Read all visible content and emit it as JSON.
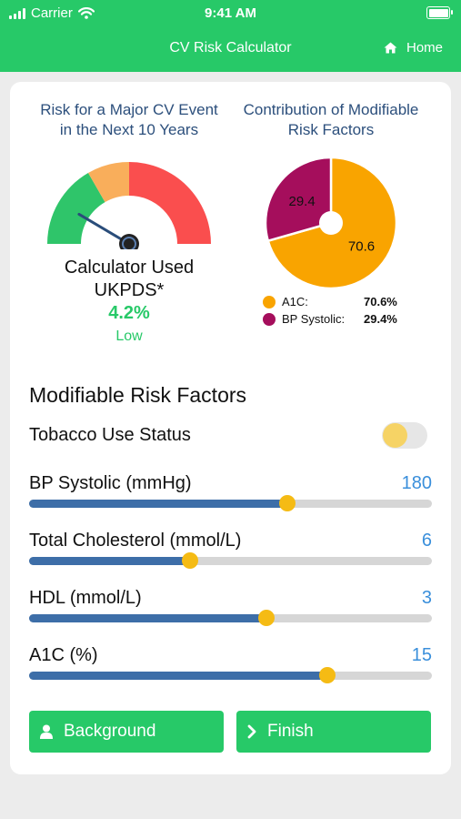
{
  "status_bar": {
    "carrier": "Carrier",
    "time": "9:41 AM"
  },
  "nav": {
    "title": "CV Risk Calculator",
    "home_label": "Home"
  },
  "risk_panel": {
    "title_line1": "Risk for a Major CV Event",
    "title_line2": "in the Next 10 Years",
    "calc_line1": "Calculator Used",
    "calc_line2": "UKPDS*",
    "risk_value": "4.2%",
    "risk_level": "Low",
    "gauge_fraction": 0.17,
    "gauge_colors": {
      "low": "#2fc56a",
      "mid": "#f9ae5b",
      "high": "#fa4e4e"
    }
  },
  "contrib_panel": {
    "title_line1": "Contribution of Modifiable",
    "title_line2": "Risk Factors",
    "legend": [
      {
        "name": "A1C:",
        "value": "70.6%",
        "color": "#f9a400"
      },
      {
        "name": "BP Systolic:",
        "value": "29.4%",
        "color": "#a50e5c"
      }
    ],
    "slice_labels": [
      "70.6",
      "29.4"
    ]
  },
  "chart_data": {
    "type": "pie",
    "title": "Contribution of Modifiable Risk Factors",
    "categories": [
      "A1C",
      "BP Systolic"
    ],
    "values": [
      70.6,
      29.4
    ],
    "colors": [
      "#f9a400",
      "#a50e5c"
    ],
    "legend_position": "bottom"
  },
  "factors": {
    "title": "Modifiable Risk Factors",
    "tobacco_label": "Tobacco Use Status",
    "tobacco_on": false,
    "sliders": [
      {
        "label": "BP Systolic (mmHg)",
        "value": "180",
        "fraction": 0.64
      },
      {
        "label": "Total Cholesterol (mmol/L)",
        "value": "6",
        "fraction": 0.4
      },
      {
        "label": "HDL (mmol/L)",
        "value": "3",
        "fraction": 0.59
      },
      {
        "label": "A1C (%)",
        "value": "15",
        "fraction": 0.74
      }
    ]
  },
  "buttons": {
    "background": "Background",
    "finish": "Finish"
  }
}
